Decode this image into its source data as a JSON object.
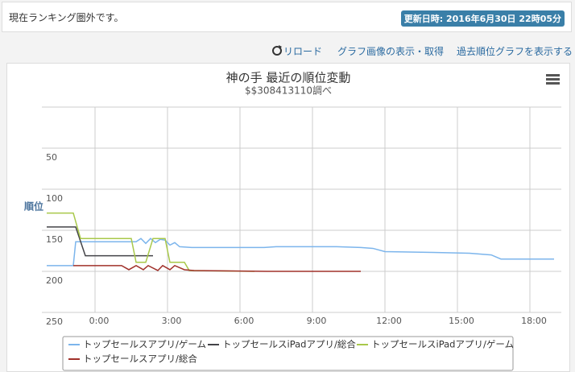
{
  "header": {
    "status": "現在ランキング圏外です。",
    "updated": "更新日時: 2016年6月30日 22時05分"
  },
  "links": [
    "リロード",
    "グラフ画像の表示・取得",
    "過去順位グラフを表示する"
  ],
  "chart_data": {
    "type": "line",
    "title": "神の手 最近の順位変動",
    "subtitle": "$$308413110調べ",
    "y_label": "順位",
    "y_reversed": true,
    "ylim": [
      0,
      250
    ],
    "yticks": [
      50,
      100,
      150,
      200,
      250
    ],
    "xlim": [
      -2.2,
      19.3
    ],
    "xticks": [
      {
        "value": 0,
        "label": "0:00"
      },
      {
        "value": 3,
        "label": "3:00"
      },
      {
        "value": 6,
        "label": "6:00"
      },
      {
        "value": 9,
        "label": "9:00"
      },
      {
        "value": 12,
        "label": "12:00"
      },
      {
        "value": 15,
        "label": "15:00"
      },
      {
        "value": 18,
        "label": "18:00"
      }
    ],
    "grid": true,
    "series": [
      {
        "name": "トップセールスアプリ/ゲーム",
        "color": "#7cb5ec",
        "x": [
          -2.0,
          -0.9,
          -0.8,
          1.7,
          1.9,
          2.1,
          2.3,
          2.5,
          2.7,
          2.9,
          3.1,
          3.3,
          3.5,
          4.0,
          7.0,
          7.5,
          10.0,
          11.0,
          11.5,
          12.0,
          14.0,
          15.5,
          16.4,
          16.8,
          19.0
        ],
        "values": [
          193,
          193,
          164,
          164,
          160,
          166,
          160,
          165,
          161,
          162,
          168,
          165,
          170,
          171,
          171,
          170,
          170,
          171,
          172,
          176,
          177,
          178,
          180,
          185,
          185
        ]
      },
      {
        "name": "トップセールスiPadアプリ/総合",
        "color": "#434348",
        "x": [
          -2.0,
          -0.8,
          -0.4,
          2.4
        ],
        "values": [
          146,
          146,
          181,
          181
        ]
      },
      {
        "name": "トップセールスiPadアプリ/ゲーム",
        "color": "#a8c84a",
        "x": [
          -2.0,
          -0.9,
          -0.6,
          1.5,
          1.7,
          2.1,
          2.4,
          2.9,
          3.1,
          3.7,
          3.9,
          6.6
        ],
        "values": [
          129,
          129,
          160,
          160,
          189,
          189,
          160,
          160,
          189,
          189,
          199,
          200
        ]
      },
      {
        "name": "トップセールスアプリ/総合",
        "color": "#a0302a",
        "x": [
          -0.9,
          1.1,
          1.4,
          1.7,
          2.0,
          2.2,
          2.6,
          2.8,
          3.1,
          3.3,
          3.7,
          4.1,
          7.1,
          11.0
        ],
        "values": [
          193,
          193,
          198,
          193,
          198,
          193,
          199,
          193,
          198,
          193,
          198,
          199,
          200,
          200
        ]
      }
    ]
  }
}
